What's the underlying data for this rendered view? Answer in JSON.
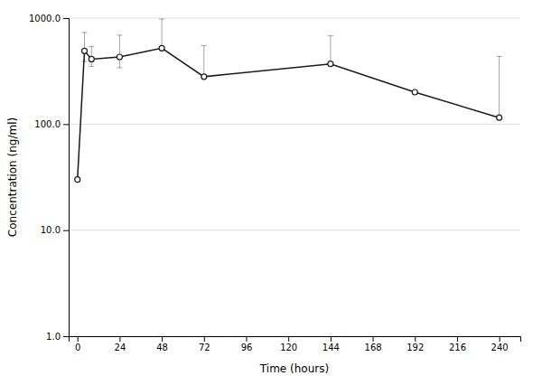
{
  "chart_data": {
    "type": "line",
    "xlabel": "Time (hours)",
    "ylabel": "Concentration (ng/ml)",
    "x": [
      0,
      4,
      8,
      24,
      48,
      72,
      144,
      192,
      240
    ],
    "series": [
      {
        "color": "#1a1a1a",
        "marker": "circle",
        "values": [
          30,
          490,
          410,
          430,
          520,
          280,
          370,
          200,
          115
        ],
        "yerr_upper": [
          0,
          240,
          130,
          260,
          460,
          270,
          310,
          0,
          320
        ],
        "yerr_lower": [
          0,
          100,
          60,
          90,
          0,
          0,
          0,
          0,
          0
        ]
      }
    ],
    "xlim": [
      -5,
      252
    ],
    "ylim": [
      1,
      1000
    ],
    "xticks": [
      0,
      24,
      48,
      72,
      96,
      120,
      144,
      168,
      192,
      216,
      240
    ],
    "yticks": [
      {
        "value": 1,
        "label": "1.0"
      },
      {
        "value": 10,
        "label": "10.0"
      },
      {
        "value": 100,
        "label": "100.0"
      },
      {
        "value": 1000,
        "label": "1000.0"
      }
    ],
    "log": "y",
    "grid": true
  }
}
